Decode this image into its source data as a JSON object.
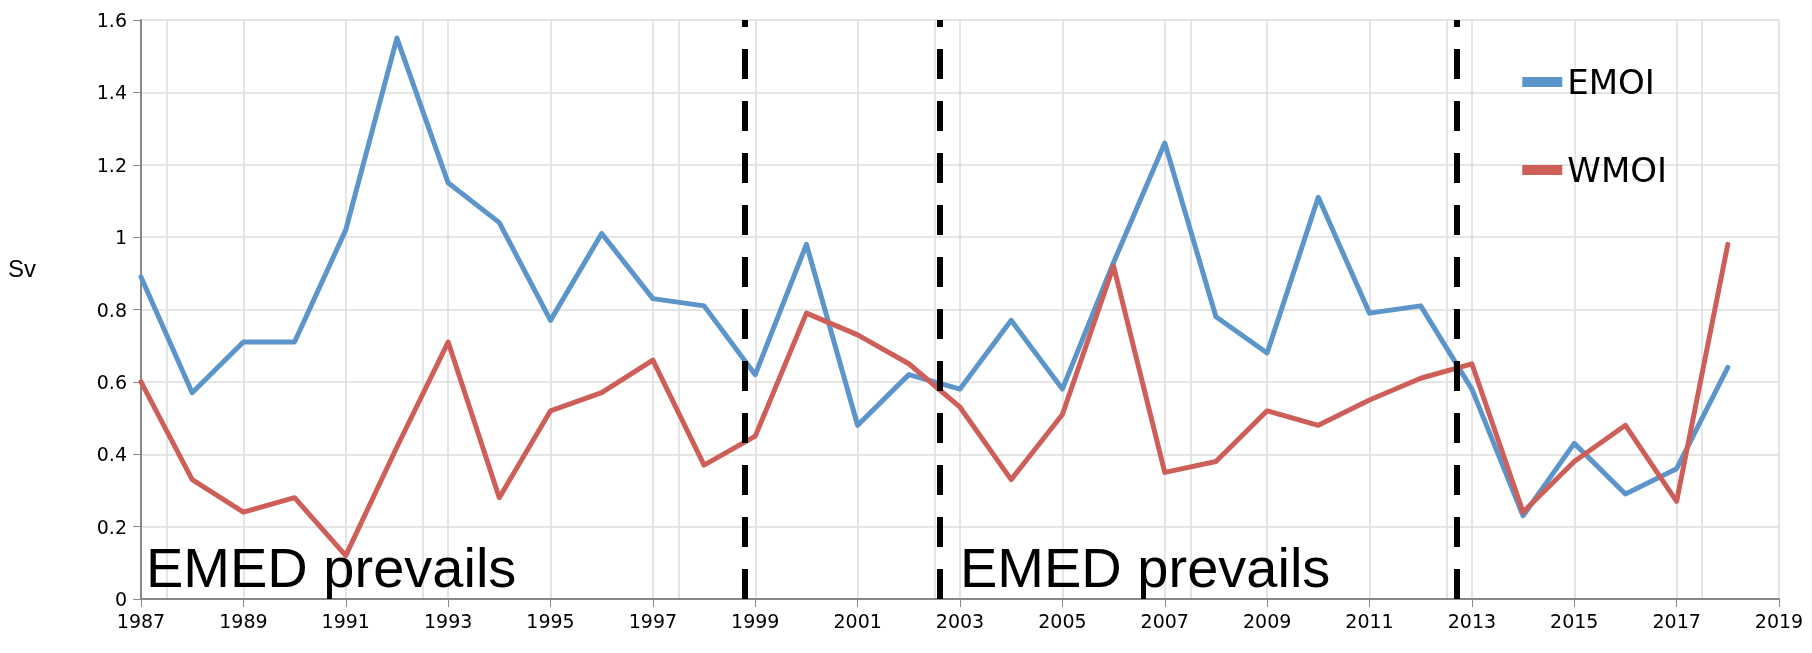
{
  "chart_data": {
    "type": "line",
    "ylabel": "Sv",
    "x": [
      1987,
      1988,
      1989,
      1990,
      1991,
      1992,
      1993,
      1994,
      1995,
      1996,
      1997,
      1998,
      1999,
      2000,
      2001,
      2002,
      2003,
      2004,
      2005,
      2006,
      2007,
      2008,
      2009,
      2010,
      2011,
      2012,
      2013,
      2014,
      2015,
      2016,
      2017,
      2018
    ],
    "series": [
      {
        "name": "EMOI",
        "color": "#5b95c9",
        "values": [
          0.89,
          0.57,
          0.71,
          0.71,
          1.02,
          1.55,
          1.15,
          1.04,
          0.77,
          1.01,
          0.83,
          0.81,
          0.62,
          0.98,
          0.48,
          0.62,
          0.58,
          0.77,
          0.58,
          0.93,
          1.26,
          0.78,
          0.68,
          1.11,
          0.79,
          0.81,
          0.58,
          0.23,
          0.43,
          0.29,
          0.36,
          0.64
        ]
      },
      {
        "name": "WMOI",
        "color": "#cd5f58",
        "values": [
          0.6,
          0.33,
          0.24,
          0.28,
          0.12,
          0.42,
          0.71,
          0.28,
          0.52,
          0.57,
          0.66,
          0.37,
          0.45,
          0.79,
          0.73,
          0.65,
          0.53,
          0.33,
          0.51,
          0.92,
          0.35,
          0.38,
          0.52,
          0.48,
          0.55,
          0.61,
          0.65,
          0.24,
          0.38,
          0.48,
          0.27,
          0.98
        ]
      }
    ],
    "xlim": [
      1987,
      2019
    ],
    "xticks": [
      1987,
      1989,
      1991,
      1993,
      1995,
      1997,
      1999,
      2001,
      2003,
      2005,
      2007,
      2009,
      2011,
      2013,
      2015,
      2017,
      2019
    ],
    "ylim": [
      0,
      1.6
    ],
    "yticks": [
      0,
      0.2,
      0.4,
      0.6,
      0.8,
      1,
      1.2,
      1.4,
      1.6
    ],
    "ref_lines": [
      {
        "axis": "x",
        "value": 1998.8,
        "color": "#000000",
        "line_style": "dashed"
      },
      {
        "axis": "x",
        "value": 2002.6,
        "color": "#000000",
        "line_style": "dashed"
      },
      {
        "axis": "x",
        "value": 2012.7,
        "color": "#000000",
        "line_style": "dashed"
      }
    ],
    "annotations": [
      "EMED prevails",
      "EMED prevails"
    ],
    "grid": true,
    "legend": "top right",
    "marker": "none",
    "line_style": "solid"
  }
}
